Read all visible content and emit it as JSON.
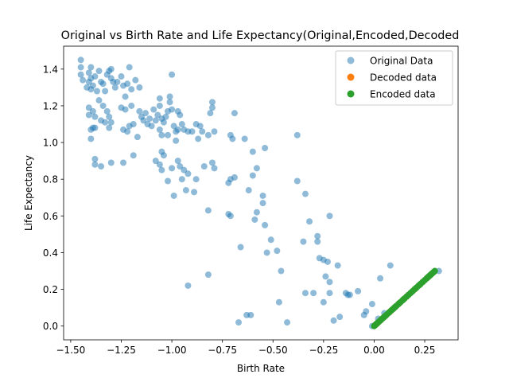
{
  "chart_data": {
    "type": "scatter",
    "title": "Original vs Birth Rate and Life Expectancy(Original,Encoded,Decoded",
    "xlabel": "Birth Rate",
    "ylabel": "Life Expectancy",
    "xlim": [
      -1.535,
      0.415
    ],
    "ylim": [
      -0.075,
      1.525
    ],
    "grid": false,
    "legend_position": "top-right",
    "x_ticks": [
      {
        "value": -1.5,
        "label": "−1.50"
      },
      {
        "value": -1.25,
        "label": "−1.25"
      },
      {
        "value": -1.0,
        "label": "−1.00"
      },
      {
        "value": -0.75,
        "label": "−0.75"
      },
      {
        "value": -0.5,
        "label": "−0.50"
      },
      {
        "value": -0.25,
        "label": "−0.25"
      },
      {
        "value": 0.0,
        "label": "0.00"
      },
      {
        "value": 0.25,
        "label": "0.25"
      }
    ],
    "y_ticks": [
      {
        "value": 0.0,
        "label": "0.0"
      },
      {
        "value": 0.2,
        "label": "0.2"
      },
      {
        "value": 0.4,
        "label": "0.4"
      },
      {
        "value": 0.6,
        "label": "0.6"
      },
      {
        "value": 0.8,
        "label": "0.8"
      },
      {
        "value": 1.0,
        "label": "1.0"
      },
      {
        "value": 1.2,
        "label": "1.2"
      },
      {
        "value": 1.4,
        "label": "1.4"
      }
    ],
    "series": [
      {
        "name": "Original Data",
        "color": "#1f77b4",
        "alpha": 0.5,
        "points": [
          [
            -1.45,
            1.45
          ],
          [
            -1.45,
            1.41
          ],
          [
            -1.45,
            1.37
          ],
          [
            -1.44,
            1.34
          ],
          [
            -1.42,
            1.3
          ],
          [
            -1.41,
            1.38
          ],
          [
            -1.41,
            1.33
          ],
          [
            -1.4,
            1.35
          ],
          [
            -1.4,
            1.41
          ],
          [
            -1.4,
            1.29
          ],
          [
            -1.39,
            1.31
          ],
          [
            -1.38,
            1.36
          ],
          [
            -1.37,
            1.28
          ],
          [
            -1.36,
            1.39
          ],
          [
            -1.35,
            1.33
          ],
          [
            -1.34,
            1.32
          ],
          [
            -1.33,
            1.28
          ],
          [
            -1.32,
            1.37
          ],
          [
            -1.31,
            1.39
          ],
          [
            -1.3,
            1.35
          ],
          [
            -1.3,
            1.4
          ],
          [
            -1.29,
            1.33
          ],
          [
            -1.28,
            1.3
          ],
          [
            -1.27,
            1.33
          ],
          [
            -1.25,
            1.36
          ],
          [
            -1.24,
            1.31
          ],
          [
            -1.23,
            1.25
          ],
          [
            -1.22,
            1.32
          ],
          [
            -1.21,
            1.41
          ],
          [
            -1.2,
            1.29
          ],
          [
            -1.18,
            1.34
          ],
          [
            -1.16,
            1.3
          ],
          [
            -1.41,
            1.15
          ],
          [
            -1.41,
            1.19
          ],
          [
            -1.39,
            1.17
          ],
          [
            -1.38,
            1.14
          ],
          [
            -1.36,
            1.23
          ],
          [
            -1.35,
            1.12
          ],
          [
            -1.34,
            1.2
          ],
          [
            -1.33,
            1.11
          ],
          [
            -1.32,
            1.17
          ],
          [
            -1.31,
            1.14
          ],
          [
            -1.31,
            1.08
          ],
          [
            -1.3,
            1.11
          ],
          [
            -1.4,
            1.07
          ],
          [
            -1.39,
            1.08
          ],
          [
            -1.38,
            1.08
          ],
          [
            -1.4,
            1.02
          ],
          [
            -1.25,
            1.19
          ],
          [
            -1.24,
            1.07
          ],
          [
            -1.23,
            1.18
          ],
          [
            -1.22,
            1.06
          ],
          [
            -1.21,
            1.09
          ],
          [
            -1.2,
            1.2
          ],
          [
            -1.19,
            1.1
          ],
          [
            -1.17,
            1.03
          ],
          [
            -1.16,
            1.17
          ],
          [
            -1.15,
            1.14
          ],
          [
            -1.14,
            1.12
          ],
          [
            -1.13,
            1.16
          ],
          [
            -1.12,
            1.1
          ],
          [
            -1.11,
            1.13
          ],
          [
            -1.1,
            1.09
          ],
          [
            -1.09,
            1.18
          ],
          [
            -1.08,
            1.12
          ],
          [
            -1.07,
            1.15
          ],
          [
            -1.06,
            1.2
          ],
          [
            -1.05,
            1.13
          ],
          [
            -1.04,
            1.11
          ],
          [
            -1.03,
            1.14
          ],
          [
            -1.02,
            1.17
          ],
          [
            -1.01,
            1.25
          ],
          [
            -1.0,
            1.37
          ],
          [
            -1.0,
            1.18
          ],
          [
            -0.99,
            1.09
          ],
          [
            -0.98,
            1.06
          ],
          [
            -0.97,
            1.07
          ],
          [
            -0.96,
            1.15
          ],
          [
            -0.95,
            1.1
          ],
          [
            -0.94,
            1.07
          ],
          [
            -1.06,
            1.24
          ],
          [
            -1.06,
            1.07
          ],
          [
            -1.05,
            1.04
          ],
          [
            -1.05,
            0.95
          ],
          [
            -1.04,
            0.93
          ],
          [
            -1.02,
            1.04
          ],
          [
            -1.01,
            1.22
          ],
          [
            -0.98,
            1.01
          ],
          [
            -0.97,
            1.17
          ],
          [
            -0.92,
            1.06
          ],
          [
            -0.9,
            1.06
          ],
          [
            -0.88,
            1.1
          ],
          [
            -0.87,
            1.02
          ],
          [
            -0.86,
            1.09
          ],
          [
            -0.85,
            1.06
          ],
          [
            -0.82,
            1.04
          ],
          [
            -0.8,
            1.19
          ],
          [
            -0.8,
            1.22
          ],
          [
            -0.79,
            1.06
          ],
          [
            -0.81,
            1.16
          ],
          [
            -0.71,
            1.04
          ],
          [
            -0.7,
            1.02
          ],
          [
            -0.69,
            1.16
          ],
          [
            -0.64,
            1.02
          ],
          [
            -1.38,
            0.91
          ],
          [
            -1.38,
            0.88
          ],
          [
            -1.35,
            0.87
          ],
          [
            -1.3,
            0.89
          ],
          [
            -1.24,
            0.89
          ],
          [
            -1.19,
            0.93
          ],
          [
            -1.08,
            0.9
          ],
          [
            -1.06,
            0.88
          ],
          [
            -1.05,
            0.85
          ],
          [
            -1.02,
            0.79
          ],
          [
            -1.0,
            0.86
          ],
          [
            -0.99,
            0.71
          ],
          [
            -0.97,
            0.9
          ],
          [
            -0.96,
            0.87
          ],
          [
            -0.95,
            0.8
          ],
          [
            -0.94,
            0.85
          ],
          [
            -0.93,
            0.74
          ],
          [
            -0.92,
            0.83
          ],
          [
            -0.89,
            0.73
          ],
          [
            -0.88,
            0.8
          ],
          [
            -0.84,
            0.87
          ],
          [
            -0.8,
            0.89
          ],
          [
            -0.79,
            0.86
          ],
          [
            -0.72,
            0.78
          ],
          [
            -0.71,
            0.8
          ],
          [
            -0.69,
            0.81
          ],
          [
            -0.62,
            0.74
          ],
          [
            -0.6,
            0.82
          ],
          [
            -0.58,
            0.86
          ],
          [
            -0.6,
            0.95
          ],
          [
            -0.54,
            0.97
          ],
          [
            -0.38,
            1.04
          ],
          [
            -0.72,
            0.61
          ],
          [
            -0.71,
            0.6
          ],
          [
            -0.82,
            0.63
          ],
          [
            -0.58,
            0.62
          ],
          [
            -0.59,
            0.58
          ],
          [
            -0.55,
            0.71
          ],
          [
            -0.55,
            0.67
          ],
          [
            -0.54,
            0.55
          ],
          [
            -0.51,
            0.47
          ],
          [
            -0.53,
            0.4
          ],
          [
            -0.48,
            0.41
          ],
          [
            -0.38,
            0.79
          ],
          [
            -0.34,
            0.72
          ],
          [
            -0.32,
            0.57
          ],
          [
            -0.35,
            0.46
          ],
          [
            -0.28,
            0.46
          ],
          [
            -0.28,
            0.49
          ],
          [
            -0.27,
            0.37
          ],
          [
            -0.25,
            0.36
          ],
          [
            -0.22,
            0.6
          ],
          [
            -0.23,
            0.35
          ],
          [
            -0.18,
            0.33
          ],
          [
            -0.14,
            0.18
          ],
          [
            -0.12,
            0.17
          ],
          [
            -0.66,
            0.43
          ],
          [
            -0.46,
            0.3
          ],
          [
            -0.92,
            0.22
          ],
          [
            -0.82,
            0.28
          ],
          [
            -0.47,
            0.13
          ],
          [
            -0.34,
            0.18
          ],
          [
            -0.3,
            0.18
          ],
          [
            -0.24,
            0.27
          ],
          [
            -0.22,
            0.24
          ],
          [
            -0.25,
            0.13
          ],
          [
            -0.22,
            0.18
          ],
          [
            -0.2,
            0.03
          ],
          [
            -0.17,
            0.05
          ],
          [
            -0.13,
            0.17
          ],
          [
            -0.08,
            0.19
          ],
          [
            -0.05,
            0.06
          ],
          [
            -0.04,
            0.08
          ],
          [
            -0.01,
            0.12
          ],
          [
            0.03,
            0.26
          ],
          [
            0.08,
            0.33
          ],
          [
            0.32,
            0.3
          ],
          [
            -0.61,
            0.06
          ],
          [
            -0.63,
            0.06
          ],
          [
            -0.67,
            0.02
          ],
          [
            -0.43,
            0.02
          ],
          [
            -0.01,
            0.0
          ],
          [
            0.02,
            0.04
          ],
          [
            0.05,
            0.07
          ]
        ]
      },
      {
        "name": "Decoded data",
        "color": "#ff7f0e",
        "alpha": 1.0,
        "points": [
          [
            0.005,
            0.005
          ],
          [
            0.01,
            0.01
          ],
          [
            0.02,
            0.02
          ],
          [
            0.03,
            0.03
          ],
          [
            0.05,
            0.05
          ],
          [
            0.08,
            0.08
          ],
          [
            0.12,
            0.12
          ],
          [
            0.16,
            0.16
          ],
          [
            0.2,
            0.2
          ],
          [
            0.24,
            0.24
          ],
          [
            0.27,
            0.27
          ],
          [
            0.29,
            0.29
          ]
        ]
      },
      {
        "name": "Encoded data",
        "color": "#2ca02c",
        "alpha": 1.0,
        "points": [
          [
            0.0,
            0.0
          ],
          [
            0.003,
            0.003
          ],
          [
            0.006,
            0.006
          ],
          [
            0.009,
            0.009
          ],
          [
            0.012,
            0.012
          ],
          [
            0.015,
            0.015
          ],
          [
            0.02,
            0.02
          ],
          [
            0.025,
            0.025
          ],
          [
            0.03,
            0.03
          ],
          [
            0.035,
            0.035
          ],
          [
            0.04,
            0.04
          ],
          [
            0.045,
            0.045
          ],
          [
            0.05,
            0.05
          ],
          [
            0.055,
            0.055
          ],
          [
            0.06,
            0.06
          ],
          [
            0.07,
            0.07
          ],
          [
            0.075,
            0.075
          ],
          [
            0.085,
            0.085
          ],
          [
            0.09,
            0.09
          ],
          [
            0.095,
            0.095
          ],
          [
            0.1,
            0.1
          ],
          [
            0.105,
            0.105
          ],
          [
            0.11,
            0.11
          ],
          [
            0.12,
            0.12
          ],
          [
            0.125,
            0.125
          ],
          [
            0.13,
            0.13
          ],
          [
            0.14,
            0.14
          ],
          [
            0.145,
            0.145
          ],
          [
            0.15,
            0.15
          ],
          [
            0.16,
            0.16
          ],
          [
            0.17,
            0.17
          ],
          [
            0.18,
            0.18
          ],
          [
            0.19,
            0.19
          ],
          [
            0.2,
            0.2
          ],
          [
            0.205,
            0.205
          ],
          [
            0.21,
            0.21
          ],
          [
            0.22,
            0.22
          ],
          [
            0.225,
            0.225
          ],
          [
            0.23,
            0.23
          ],
          [
            0.24,
            0.24
          ],
          [
            0.25,
            0.25
          ],
          [
            0.26,
            0.26
          ],
          [
            0.265,
            0.265
          ],
          [
            0.27,
            0.27
          ],
          [
            0.275,
            0.275
          ],
          [
            0.28,
            0.28
          ],
          [
            0.285,
            0.285
          ],
          [
            0.29,
            0.29
          ],
          [
            0.295,
            0.295
          ],
          [
            0.3,
            0.3
          ]
        ]
      }
    ]
  }
}
